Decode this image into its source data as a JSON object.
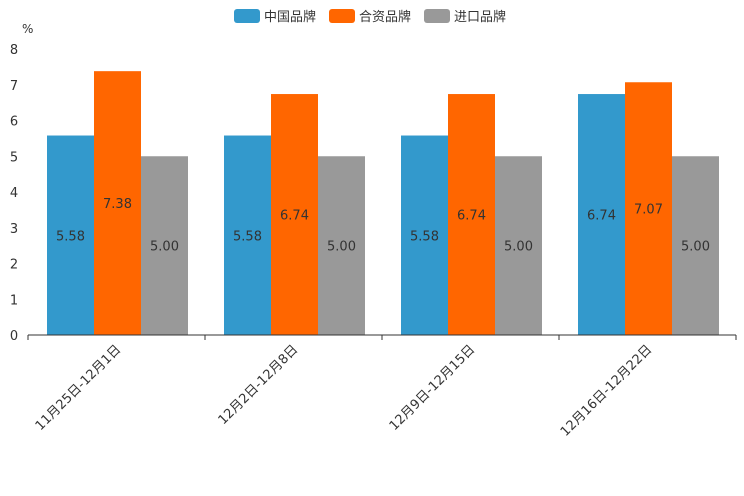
{
  "chart_data": {
    "type": "bar",
    "title": "",
    "ylabel": "%",
    "xlabel": "",
    "ylim": [
      0,
      8
    ],
    "yticks": [
      0,
      1,
      2,
      3,
      4,
      5,
      6,
      7,
      8
    ],
    "legend_position": "top-center",
    "grid": false,
    "categories": [
      "11月25日-12月1日",
      "12月2日-12月8日",
      "12月9日-12月15日",
      "12月16日-12月22日"
    ],
    "series": [
      {
        "name": "中国品牌",
        "color": "#3399cc",
        "values": [
          5.58,
          5.58,
          5.58,
          6.74
        ],
        "labels": [
          "5.58",
          "5.58",
          "5.58",
          "6.74"
        ]
      },
      {
        "name": "合资品牌",
        "color": "#ff6600",
        "values": [
          7.38,
          6.74,
          6.74,
          7.07
        ],
        "labels": [
          "7.38",
          "6.74",
          "6.74",
          "7.07"
        ]
      },
      {
        "name": "进口品牌",
        "color": "#999999",
        "values": [
          5.0,
          5.0,
          5.0,
          5.0
        ],
        "labels": [
          "5.00",
          "5.00",
          "5.00",
          "5.00"
        ]
      }
    ]
  }
}
